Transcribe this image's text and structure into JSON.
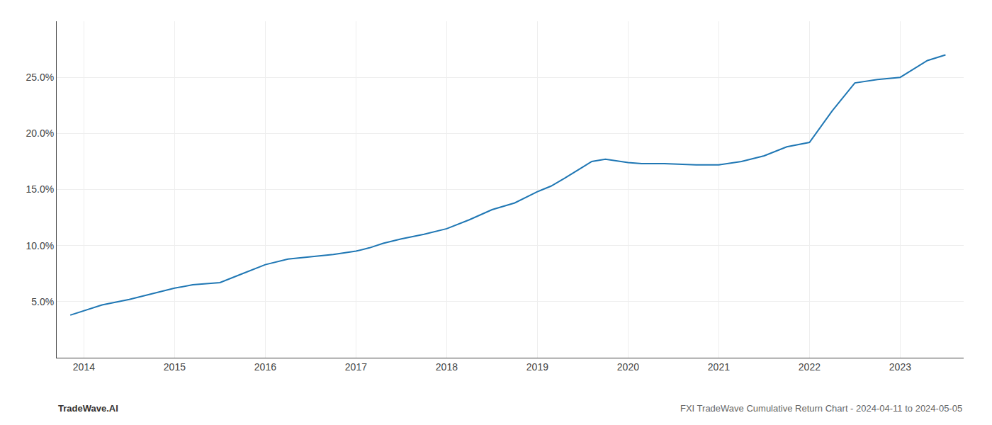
{
  "chart_data": {
    "type": "line",
    "color": "#1f77b4",
    "x": [
      2013.85,
      2014.0,
      2014.2,
      2014.5,
      2014.75,
      2015.0,
      2015.2,
      2015.5,
      2015.75,
      2016.0,
      2016.25,
      2016.5,
      2016.75,
      2017.0,
      2017.15,
      2017.3,
      2017.5,
      2017.75,
      2018.0,
      2018.25,
      2018.5,
      2018.75,
      2019.0,
      2019.15,
      2019.3,
      2019.5,
      2019.6,
      2019.75,
      2019.9,
      2020.0,
      2020.15,
      2020.4,
      2020.75,
      2021.0,
      2021.25,
      2021.5,
      2021.75,
      2022.0,
      2022.25,
      2022.5,
      2022.75,
      2023.0,
      2023.3,
      2023.5
    ],
    "values": [
      3.8,
      4.2,
      4.7,
      5.2,
      5.7,
      6.2,
      6.5,
      6.7,
      7.5,
      8.3,
      8.8,
      9.0,
      9.2,
      9.5,
      9.8,
      10.2,
      10.6,
      11.0,
      11.5,
      12.3,
      13.2,
      13.8,
      14.8,
      15.3,
      16.0,
      17.0,
      17.5,
      17.7,
      17.5,
      17.4,
      17.3,
      17.3,
      17.2,
      17.2,
      17.5,
      18.0,
      18.8,
      19.2,
      22.0,
      24.5,
      24.8,
      25.0,
      26.5,
      27.0
    ],
    "xlim": [
      2013.7,
      2023.7
    ],
    "xticks": [
      2014,
      2015,
      2016,
      2017,
      2018,
      2019,
      2020,
      2021,
      2022,
      2023
    ],
    "ylim": [
      0,
      30
    ],
    "yticks": [
      {
        "value": 5.0,
        "label": "5.0%"
      },
      {
        "value": 10.0,
        "label": "10.0%"
      },
      {
        "value": 15.0,
        "label": "15.0%"
      },
      {
        "value": 20.0,
        "label": "20.0%"
      },
      {
        "value": 25.0,
        "label": "25.0%"
      }
    ],
    "grid": true,
    "annotations": [
      "TradeWave.AI",
      "FXI TradeWave Cumulative Return Chart - 2024-04-11 to 2024-05-05"
    ]
  }
}
